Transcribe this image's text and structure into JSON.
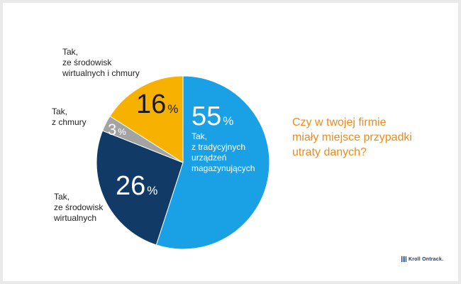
{
  "chart_data": {
    "type": "pie",
    "title": "Czy w twojej firmie miały miejsce przypadki utraty danych?",
    "slices": [
      {
        "value": 55,
        "label_lines": [
          "Tak,",
          "z tradycyjnych",
          "urządzeń",
          "magazynujących"
        ],
        "color": "#1aa0e4"
      },
      {
        "value": 26,
        "label_lines": [
          "Tak,",
          "ze środowisk",
          "wirtualnych"
        ],
        "color": "#123a66"
      },
      {
        "value": 3,
        "label_lines": [
          "Tak,",
          "z chmury"
        ],
        "color": "#a3a3a3"
      },
      {
        "value": 16,
        "label_lines": [
          "Tak,",
          "ze środowisk",
          "wirtualnych i chmury"
        ],
        "color": "#f7b100"
      }
    ],
    "percent_sign": "%"
  },
  "question_lines": [
    "Czy w twojej firmie",
    "miały miejsce przypadki",
    "utraty danych?"
  ],
  "logo_text": "Kroll Ontrack."
}
